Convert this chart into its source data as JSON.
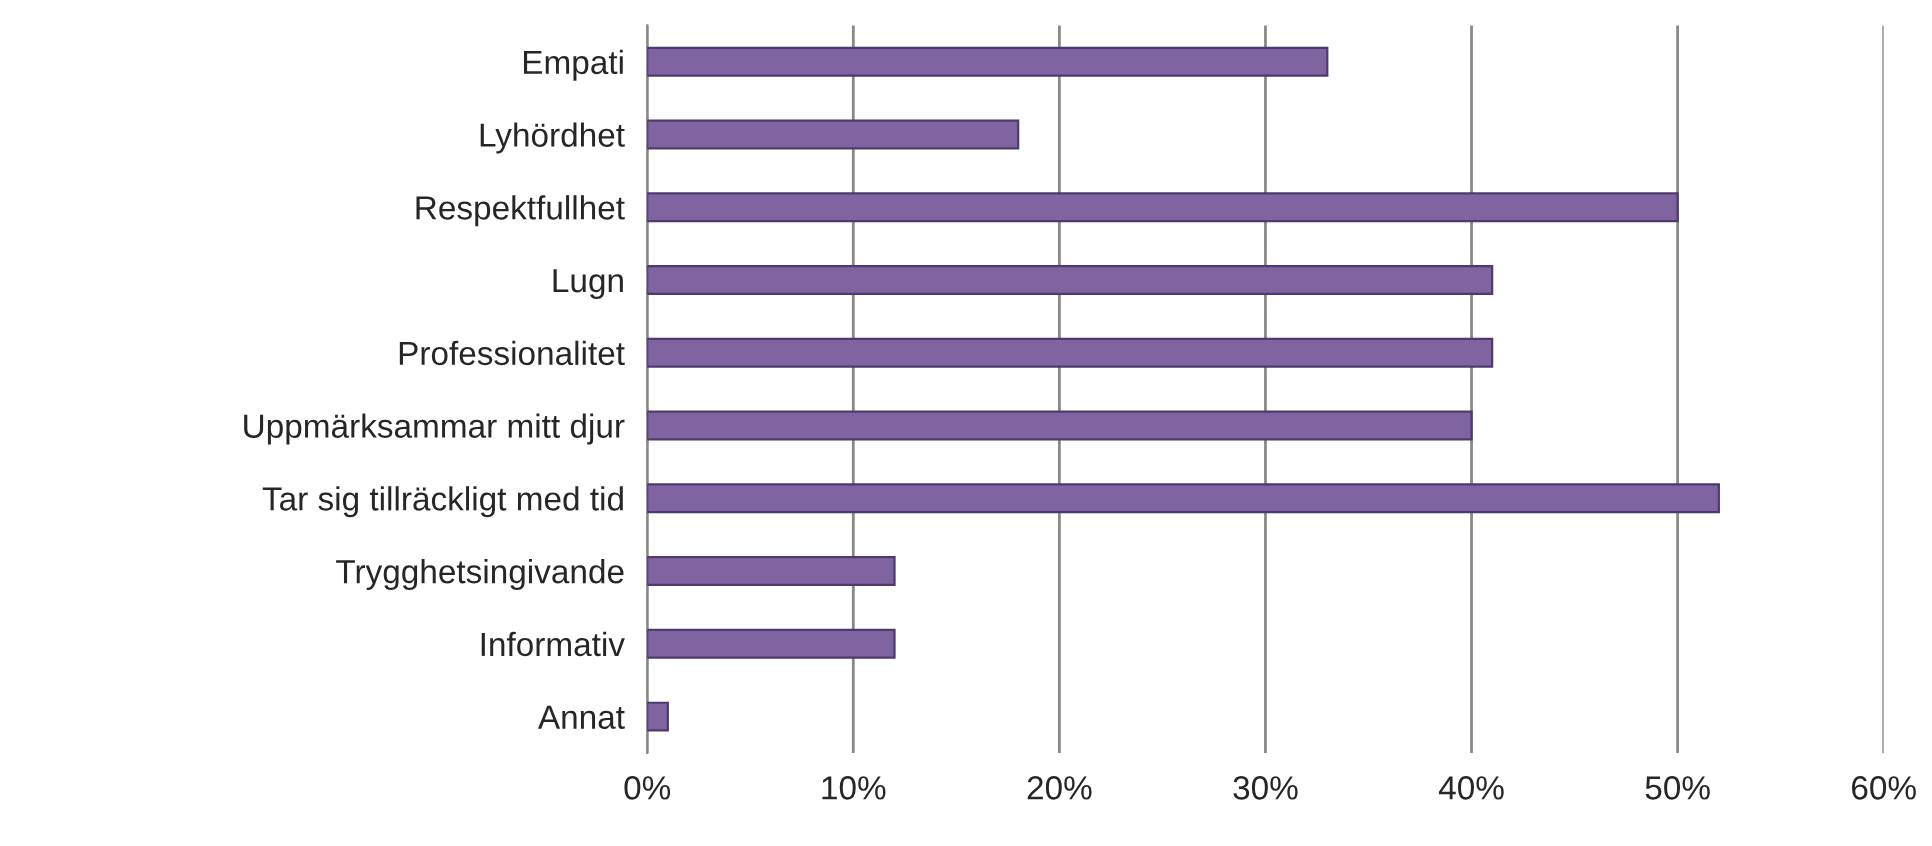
{
  "chart_data": {
    "type": "bar",
    "orientation": "horizontal",
    "categories": [
      "Empati",
      "Lyhördhet",
      "Respektfullhet",
      "Lugn",
      "Professionalitet",
      "Uppmärksammar mitt djur",
      "Tar sig tillräckligt med tid",
      "Trygghetsingivande",
      "Informativ",
      "Annat"
    ],
    "values": [
      33,
      18,
      50,
      41,
      41,
      40,
      52,
      12,
      12,
      1
    ],
    "color": "#8064a2",
    "xlim": [
      0,
      60
    ],
    "xticks": [
      {
        "value": 0,
        "label": "0%"
      },
      {
        "value": 10,
        "label": "10%"
      },
      {
        "value": 20,
        "label": "20%"
      },
      {
        "value": 30,
        "label": "30%"
      },
      {
        "value": 40,
        "label": "40%"
      },
      {
        "value": 50,
        "label": "50%"
      },
      {
        "value": 60,
        "label": "60%"
      }
    ],
    "grid": "x"
  }
}
